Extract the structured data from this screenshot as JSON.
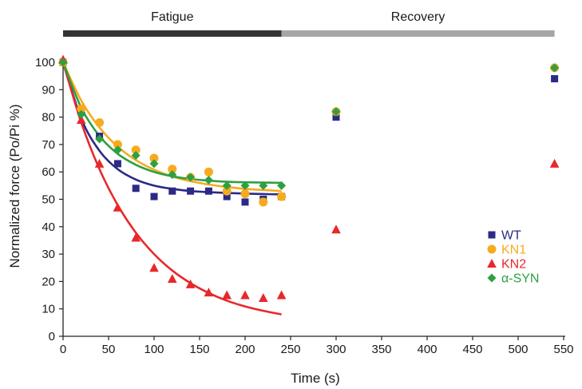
{
  "chart_data": {
    "type": "scatter",
    "xlabel": "Time (s)",
    "ylabel": "Normalized force (Po/Pi %)",
    "xlim": [
      0,
      550
    ],
    "ylim": [
      0,
      100
    ],
    "xticks": [
      0,
      50,
      100,
      150,
      200,
      250,
      300,
      350,
      400,
      450,
      500,
      550
    ],
    "yticks": [
      0,
      10,
      20,
      30,
      40,
      50,
      60,
      70,
      80,
      90,
      100
    ],
    "xtick_labels": [
      "0",
      "50",
      "100",
      "150",
      "200",
      "250",
      "300",
      "350",
      "400",
      "450",
      "500",
      "550"
    ],
    "ytick_labels": [
      "0",
      "10",
      "20",
      "30",
      "40",
      "50",
      "60",
      "70",
      "80",
      "90",
      "100"
    ],
    "grid": false,
    "legend_position": "right",
    "phases": [
      {
        "label": "Fatigue",
        "x_range": [
          0,
          240
        ],
        "color": "#333333"
      },
      {
        "label": "Recovery",
        "x_range": [
          240,
          540
        ],
        "color": "#a6a6a6"
      }
    ],
    "series": [
      {
        "name": "WT",
        "marker": "square",
        "color": "#2b2a86",
        "x": [
          0,
          20,
          40,
          60,
          80,
          100,
          120,
          140,
          160,
          180,
          200,
          220,
          240,
          300,
          540
        ],
        "y": [
          100,
          82,
          73,
          63,
          54,
          51,
          53,
          53,
          53,
          51,
          49,
          50,
          51,
          80,
          94
        ],
        "fit": {
          "x": [
            0,
            20,
            40,
            60,
            80,
            100,
            120,
            140,
            160,
            180,
            200,
            220,
            240
          ],
          "y": [
            100,
            79.4,
            67.7,
            61.0,
            57.2,
            55.0,
            53.8,
            53.0,
            52.6,
            52.3,
            52.1,
            51.9,
            51.8
          ]
        }
      },
      {
        "name": "KN1",
        "marker": "circle",
        "color": "#f6ab1e",
        "x": [
          0,
          20,
          40,
          60,
          80,
          100,
          120,
          140,
          160,
          180,
          200,
          220,
          240,
          300,
          540
        ],
        "y": [
          100,
          83,
          78,
          70,
          68,
          65,
          61,
          58,
          60,
          53,
          52,
          49,
          51,
          82,
          98
        ],
        "fit": {
          "x": [
            0,
            20,
            40,
            60,
            80,
            100,
            120,
            140,
            160,
            180,
            200,
            220,
            240
          ],
          "y": [
            100,
            86.0,
            76.2,
            69.2,
            64.3,
            60.8,
            58.3,
            56.6,
            55.4,
            54.5,
            53.8,
            53.4,
            53.0
          ]
        }
      },
      {
        "name": "KN2",
        "marker": "triangle",
        "color": "#e8282a",
        "x": [
          0,
          20,
          40,
          60,
          80,
          100,
          120,
          140,
          160,
          180,
          200,
          220,
          240,
          300,
          540
        ],
        "y": [
          101,
          79,
          63,
          47,
          36,
          25,
          21,
          19,
          16,
          15,
          15,
          14,
          15,
          39,
          63
        ],
        "fit": {
          "x": [
            0,
            20,
            40,
            60,
            80,
            100,
            120,
            140,
            160,
            180,
            200,
            220,
            240
          ],
          "y": [
            100,
            78.0,
            61.0,
            47.9,
            37.8,
            30.0,
            24.0,
            19.4,
            15.8,
            13.0,
            10.9,
            9.3,
            8.0
          ]
        }
      },
      {
        "name": "α-SYN",
        "marker": "diamond",
        "color": "#2ea043",
        "x": [
          0,
          20,
          40,
          60,
          80,
          100,
          120,
          140,
          160,
          180,
          200,
          220,
          240,
          300,
          540
        ],
        "y": [
          100,
          81,
          72,
          68,
          66,
          63,
          59,
          58,
          57,
          55,
          55,
          55,
          55,
          82,
          98
        ],
        "fit": {
          "x": [
            0,
            20,
            40,
            60,
            80,
            100,
            120,
            140,
            160,
            180,
            200,
            220,
            240
          ],
          "y": [
            100,
            83.4,
            73.1,
            66.6,
            62.6,
            60.0,
            58.4,
            57.4,
            56.8,
            56.4,
            56.2,
            56.1,
            56.0
          ]
        }
      }
    ]
  }
}
